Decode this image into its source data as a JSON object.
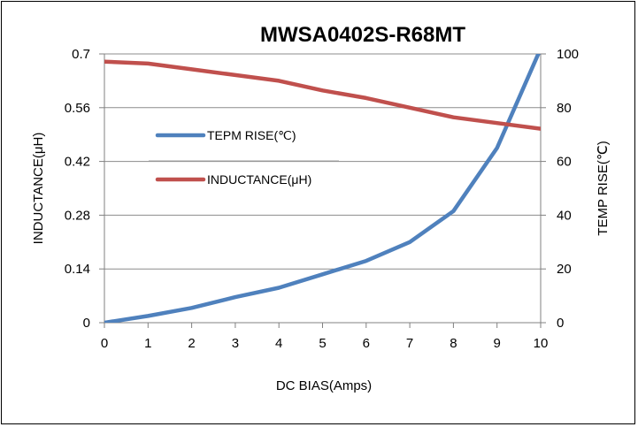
{
  "chart_data": {
    "type": "line",
    "title": "MWSA0402S-R68MT",
    "xlabel": "DC  BIAS(Amps)",
    "ylabel_left": "INDUCTANCE(μH)",
    "ylabel_right": "TEMP RISE(℃)",
    "x": [
      0,
      1,
      2,
      3,
      4,
      5,
      6,
      7,
      8,
      9,
      10
    ],
    "x_ticks": [
      "0",
      "1",
      "2",
      "3",
      "4",
      "5",
      "6",
      "7",
      "8",
      "9",
      "10"
    ],
    "xlim": [
      0,
      10
    ],
    "ylim_left": [
      0,
      0.7
    ],
    "ylim_right": [
      0,
      100
    ],
    "y_left_ticks": [
      "0",
      "0.14",
      "0.28",
      "0.42",
      "0.56",
      "0.7"
    ],
    "y_right_ticks": [
      "0",
      "20",
      "40",
      "60",
      "80",
      "100"
    ],
    "grid": true,
    "legend": "upper-left inside plot",
    "series": [
      {
        "name": "TEPM RISE(℃)",
        "axis": "right",
        "color": "#4f81bd",
        "values": [
          0,
          2.5,
          5.5,
          9.5,
          13,
          18,
          23,
          30,
          41.5,
          65,
          102
        ]
      },
      {
        "name": "INDUCTANCE(μH)",
        "axis": "left",
        "color": "#c0504d",
        "values": [
          0.68,
          0.675,
          0.66,
          0.645,
          0.63,
          0.605,
          0.585,
          0.56,
          0.535,
          0.52,
          0.505
        ]
      }
    ]
  }
}
